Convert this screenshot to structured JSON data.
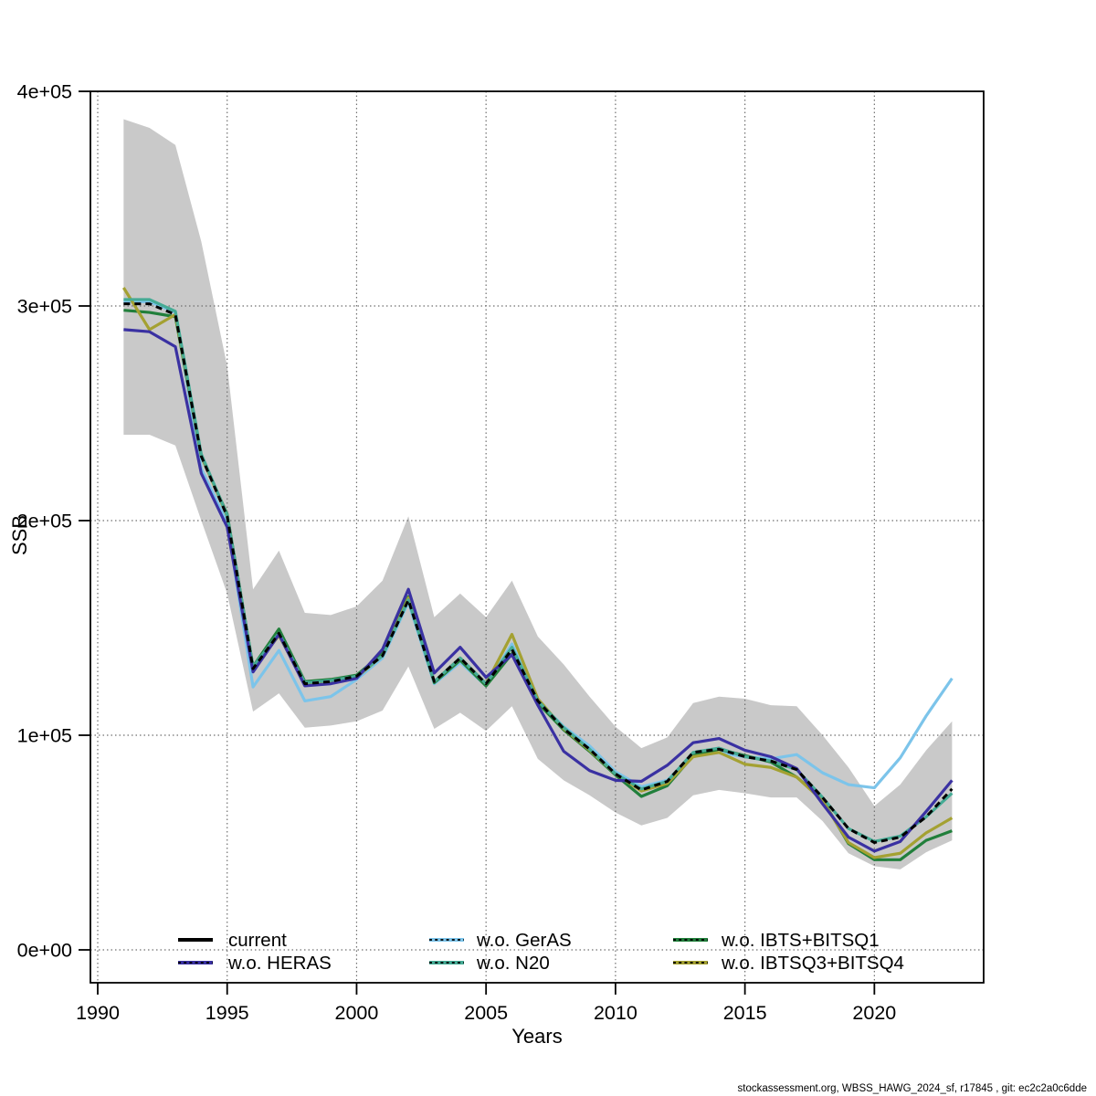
{
  "footer": {
    "text": "stockassessment.org, WBSS_HAWG_2024_sf, r17845 , git: ec2c2a0c6dde"
  },
  "chart_data": {
    "type": "line",
    "title": "",
    "xlabel": "Years",
    "ylabel": "SSB",
    "grid": "dotted",
    "legend_position": "bottom-inside",
    "xlim": [
      1989.7,
      2024.3
    ],
    "ylim": [
      0,
      400000
    ],
    "x_ticks": [
      1990,
      1995,
      2000,
      2005,
      2010,
      2015,
      2020
    ],
    "y_ticks": [
      {
        "value": 0,
        "label": "0e+00"
      },
      {
        "value": 100000,
        "label": "1e+05"
      },
      {
        "value": 200000,
        "label": "2e+05"
      },
      {
        "value": 300000,
        "label": "3e+05"
      },
      {
        "value": 400000,
        "label": "4e+05"
      }
    ],
    "years": [
      1991,
      1992,
      1993,
      1994,
      1995,
      1996,
      1997,
      1998,
      1999,
      2000,
      2001,
      2002,
      2003,
      2004,
      2005,
      2006,
      2007,
      2008,
      2009,
      2010,
      2011,
      2012,
      2013,
      2014,
      2015,
      2016,
      2017,
      2018,
      2019,
      2020,
      2021,
      2022,
      2023
    ],
    "band": {
      "name": "current 95% confidence band",
      "color": "#c9c9c9",
      "lower": [
        240000,
        240000,
        235000,
        200000,
        166000,
        111000,
        119500,
        103500,
        104500,
        106500,
        111500,
        132000,
        103000,
        110500,
        102000,
        113500,
        89000,
        79000,
        72000,
        64000,
        58000,
        61500,
        72000,
        74500,
        73000,
        71000,
        71000,
        60000,
        45000,
        39000,
        37500,
        45500,
        51000
      ],
      "upper": [
        387000,
        383000,
        375000,
        330000,
        272000,
        168000,
        186000,
        157000,
        156000,
        160000,
        172000,
        202000,
        155000,
        166000,
        155000,
        172000,
        146000,
        133000,
        118000,
        104000,
        94000,
        99000,
        115000,
        118000,
        117000,
        114000,
        113500,
        100000,
        85000,
        67000,
        77000,
        93000,
        106500
      ]
    },
    "series": [
      {
        "name": "current",
        "color": "#000000",
        "style": "dashed",
        "legend_overlay": false,
        "values": [
          301000,
          301000,
          296000,
          230000,
          202000,
          131000,
          147500,
          124000,
          125000,
          127500,
          137000,
          163000,
          125000,
          136000,
          124000,
          140000,
          116000,
          103000,
          93500,
          82000,
          74500,
          78500,
          92000,
          93500,
          90000,
          88000,
          84000,
          71000,
          56500,
          50000,
          52500,
          62000,
          75000
        ]
      },
      {
        "name": "w.o. HERAS",
        "color": "#3a31a2",
        "style": "solid",
        "legend_overlay": true,
        "values": [
          289000,
          288000,
          281000,
          222000,
          197000,
          129500,
          147000,
          123000,
          124000,
          126500,
          140000,
          168000,
          129000,
          141000,
          127000,
          137500,
          114000,
          92500,
          83500,
          79000,
          78500,
          86000,
          96500,
          98500,
          93000,
          90000,
          84500,
          68000,
          52500,
          46000,
          50500,
          64500,
          79000
        ]
      },
      {
        "name": "w.o. GerAS",
        "color": "#7cc4ea",
        "style": "solid",
        "legend_overlay": true,
        "values": [
          302000,
          302000,
          297000,
          224000,
          199000,
          122500,
          139500,
          116000,
          118000,
          126000,
          136000,
          162000,
          124000,
          134000,
          123000,
          142500,
          116000,
          104000,
          95000,
          83000,
          76000,
          79000,
          91000,
          92000,
          90000,
          89000,
          91000,
          82500,
          77000,
          75500,
          89500,
          109000,
          126500
        ]
      },
      {
        "name": "w.o. N20",
        "color": "#45ab95",
        "style": "solid",
        "legend_overlay": true,
        "values": [
          303000,
          303000,
          297500,
          231000,
          202500,
          132000,
          147500,
          124500,
          125500,
          127500,
          137000,
          163000,
          125000,
          136000,
          124000,
          141000,
          116000,
          103500,
          93500,
          82000,
          75000,
          78500,
          92000,
          94000,
          90000,
          88000,
          84000,
          71000,
          56500,
          50500,
          53000,
          62000,
          73000
        ]
      },
      {
        "name": "w.o. IBTS+BITSQ1",
        "color": "#217f3b",
        "style": "solid",
        "legend_overlay": true,
        "values": [
          298000,
          297000,
          295000,
          230000,
          203000,
          132000,
          149500,
          125000,
          126000,
          128000,
          138000,
          164500,
          124500,
          135000,
          123000,
          138000,
          115000,
          102500,
          92500,
          81500,
          71500,
          76500,
          90500,
          93500,
          90500,
          87500,
          80500,
          70000,
          49500,
          42000,
          42000,
          51000,
          55500
        ]
      },
      {
        "name": "w.o. IBTSQ3+BITSQ4",
        "color": "#a4a132",
        "style": "solid",
        "legend_overlay": true,
        "values": [
          308500,
          289000,
          296000,
          230500,
          202000,
          131000,
          146500,
          124000,
          125000,
          127000,
          137000,
          164000,
          125000,
          136000,
          124000,
          147000,
          117000,
          103000,
          93000,
          82000,
          74000,
          77500,
          90000,
          92000,
          86500,
          85000,
          80500,
          69500,
          50000,
          43000,
          45000,
          54500,
          61500
        ]
      }
    ],
    "colors": {
      "band": "#c9c9c9",
      "grid": "#6f6f6f",
      "axis": "#000000"
    }
  }
}
